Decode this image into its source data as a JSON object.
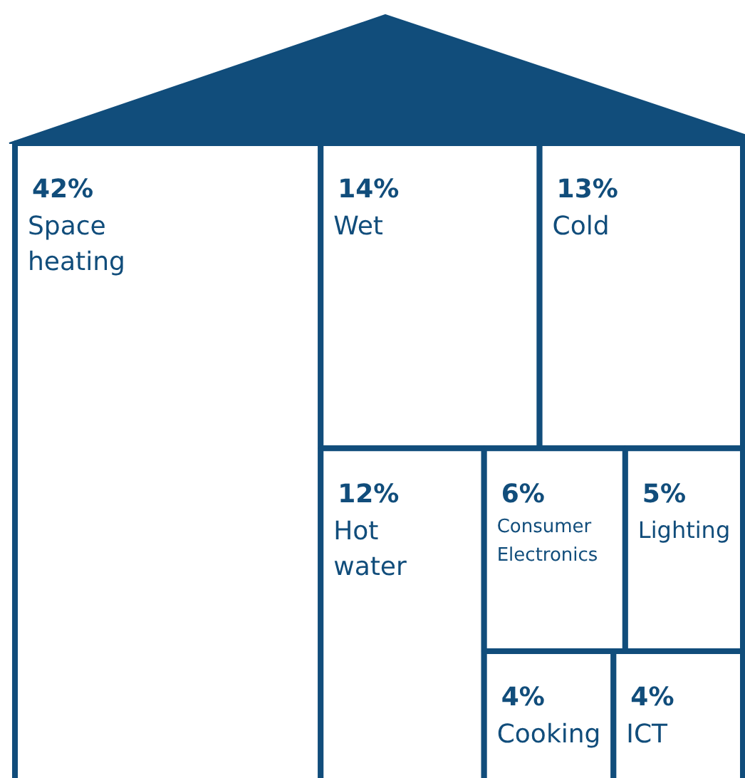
{
  "chart_data": {
    "type": "other",
    "categories": [
      "Space heating",
      "Wet",
      "Cold",
      "Hot water",
      "Consumer Electronics",
      "Lighting",
      "Cooking",
      "ICT"
    ],
    "values": [
      42,
      14,
      13,
      12,
      6,
      5,
      4,
      4
    ],
    "value_labels": [
      "42%",
      "14%",
      "13%",
      "12%",
      "6%",
      "5%",
      "4%",
      "4%"
    ],
    "color": "#114d7b"
  }
}
